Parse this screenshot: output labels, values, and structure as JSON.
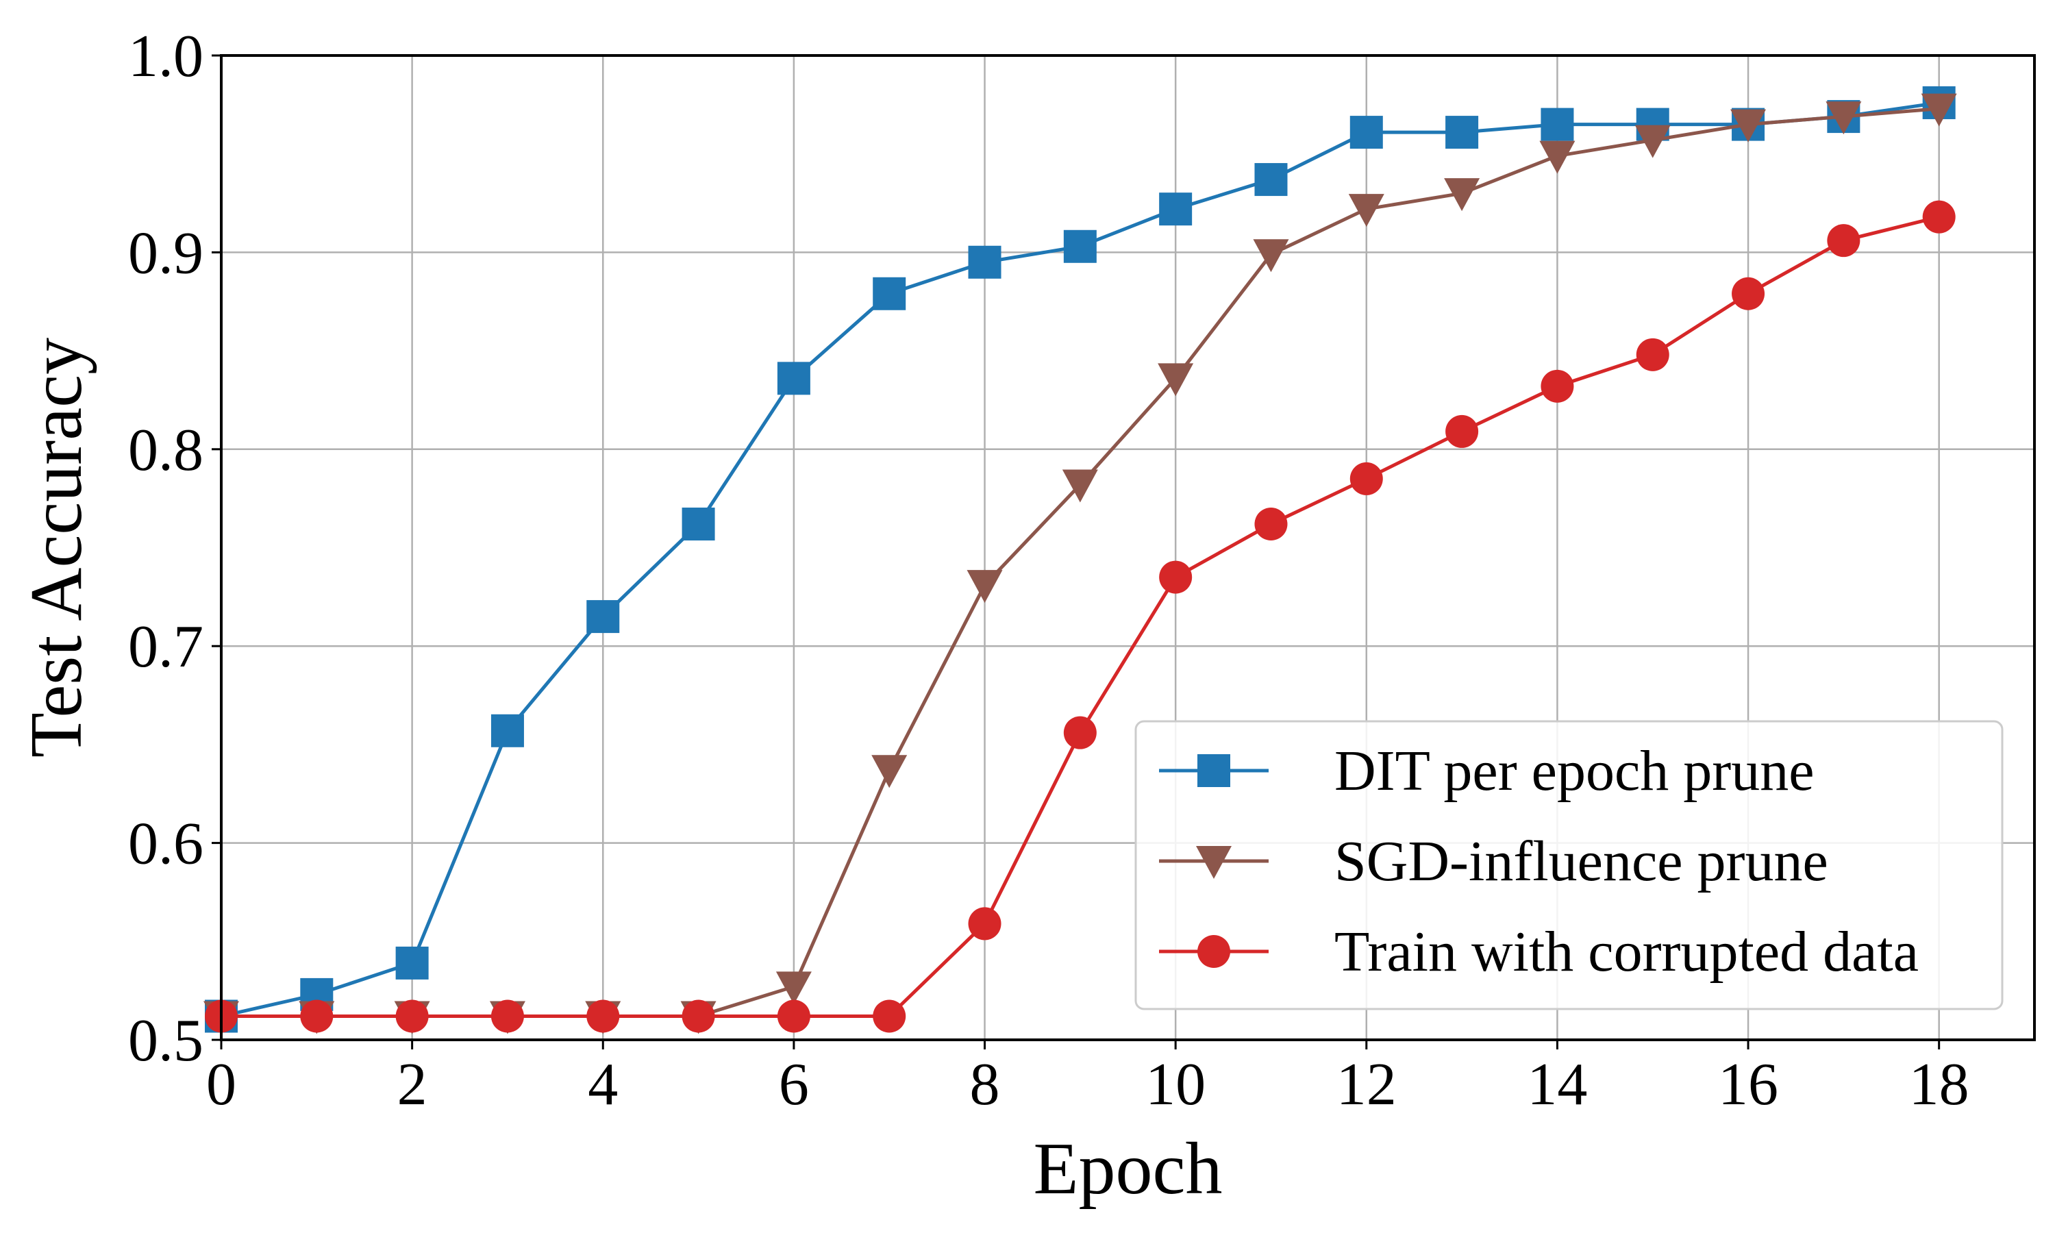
{
  "chart_data": {
    "type": "line",
    "xlabel": "Epoch",
    "ylabel": "Test Accuracy",
    "xlim": [
      0,
      19
    ],
    "ylim": [
      0.5,
      1.0
    ],
    "x_ticks": [
      "0",
      "2",
      "4",
      "6",
      "8",
      "10",
      "12",
      "14",
      "16",
      "18"
    ],
    "y_ticks": [
      "0.5",
      "0.6",
      "0.7",
      "0.8",
      "0.9",
      "1.0"
    ],
    "grid": true,
    "legend_position": "lower-right",
    "x": [
      0,
      1,
      2,
      3,
      4,
      5,
      6,
      7,
      8,
      9,
      10,
      11,
      12,
      13,
      14,
      15,
      16,
      17,
      18
    ],
    "series": [
      {
        "name": "DIT per epoch prune",
        "color": "#1f77b4",
        "marker": "square",
        "values": [
          0.512,
          0.523,
          0.539,
          0.657,
          0.715,
          0.762,
          0.836,
          0.879,
          0.895,
          0.903,
          0.922,
          0.937,
          0.961,
          0.961,
          0.965,
          0.965,
          0.965,
          0.969,
          0.976
        ]
      },
      {
        "name": "SGD-influence prune",
        "color": "#8c564b",
        "marker": "triangle-down",
        "values": [
          0.512,
          0.512,
          0.512,
          0.512,
          0.512,
          0.512,
          0.527,
          0.637,
          0.731,
          0.782,
          0.836,
          0.899,
          0.922,
          0.93,
          0.949,
          0.957,
          0.965,
          0.969,
          0.973
        ]
      },
      {
        "name": "Train with corrupted data",
        "color": "#d62728",
        "marker": "circle",
        "values": [
          0.512,
          0.512,
          0.512,
          0.512,
          0.512,
          0.512,
          0.512,
          0.512,
          0.559,
          0.656,
          0.735,
          0.762,
          0.785,
          0.809,
          0.832,
          0.848,
          0.879,
          0.906,
          0.918
        ]
      }
    ]
  }
}
